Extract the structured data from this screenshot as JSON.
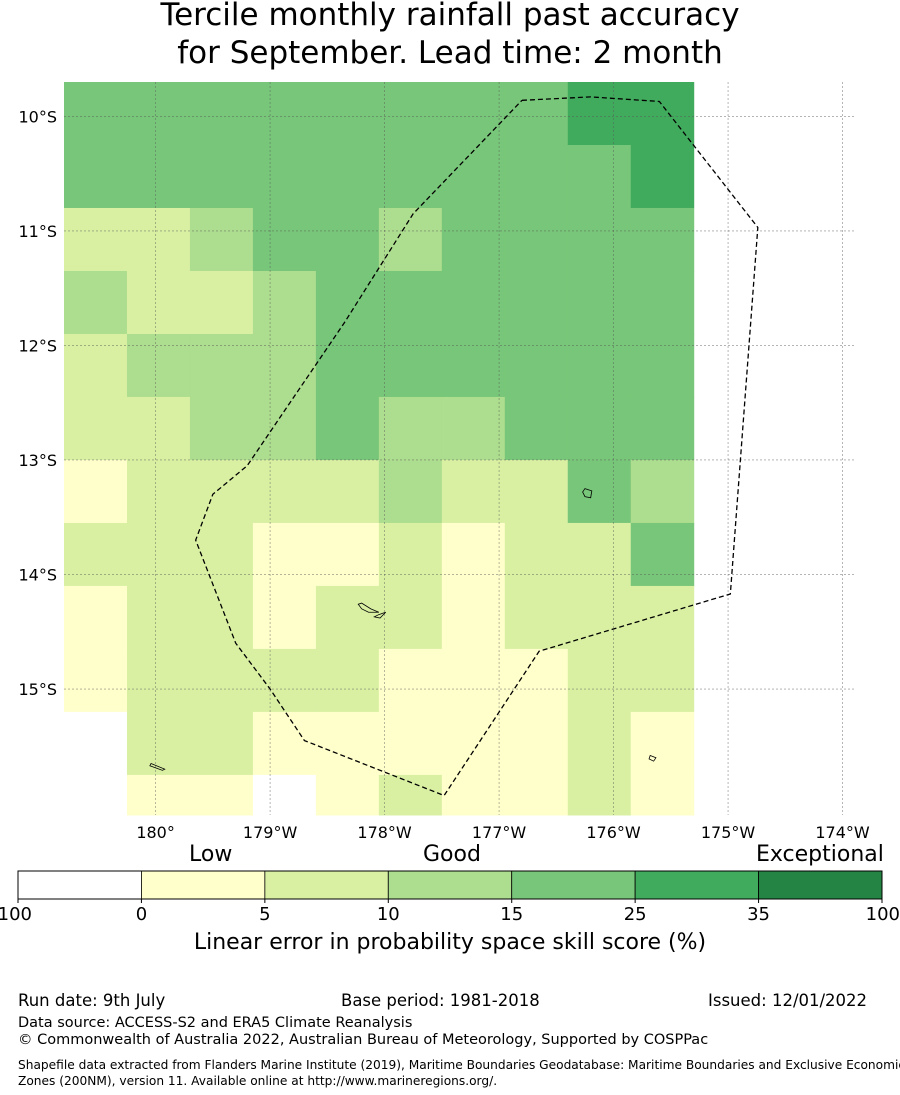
{
  "title": {
    "line1": "Tercile monthly rainfall past accuracy",
    "line2": "for September. Lead time: 2 month"
  },
  "map": {
    "lon_labels": [
      "180°",
      "179°W",
      "178°W",
      "177°W",
      "176°W",
      "175°W",
      "174°W"
    ],
    "lat_labels": [
      "10°S",
      "11°S",
      "12°S",
      "13°S",
      "14°S",
      "15°S"
    ],
    "lon_values": [
      180,
      -179,
      -178,
      -177,
      -176,
      -175,
      -174
    ],
    "lat_values": [
      -10,
      -11,
      -12,
      -13,
      -14,
      -15
    ],
    "extent": {
      "lon_min": 179.2,
      "lon_max": -173.9,
      "lat_max": -9.7,
      "lat_min": -16.1
    },
    "grid_lines": true,
    "cell_deg": 0.55,
    "category_colors": [
      "#ffffff",
      "#ffffcc",
      "#d9f0a3",
      "#addd8e",
      "#78c679",
      "#41ab5d",
      "#238443"
    ],
    "skill_grid": [
      [
        4,
        4,
        4,
        4,
        4,
        4,
        4,
        4,
        5,
        5
      ],
      [
        4,
        4,
        4,
        4,
        4,
        4,
        4,
        4,
        4,
        5
      ],
      [
        2,
        2,
        3,
        4,
        4,
        3,
        4,
        4,
        4,
        4
      ],
      [
        3,
        2,
        2,
        3,
        4,
        4,
        4,
        4,
        4,
        4
      ],
      [
        2,
        3,
        3,
        3,
        4,
        4,
        4,
        4,
        4,
        4
      ],
      [
        2,
        2,
        3,
        3,
        4,
        3,
        3,
        4,
        4,
        4
      ],
      [
        1,
        2,
        2,
        2,
        2,
        3,
        2,
        2,
        4,
        3
      ],
      [
        2,
        2,
        2,
        1,
        1,
        2,
        1,
        2,
        2,
        4
      ],
      [
        1,
        2,
        2,
        1,
        2,
        2,
        1,
        2,
        2,
        2
      ],
      [
        1,
        2,
        2,
        2,
        2,
        1,
        1,
        1,
        2,
        2
      ],
      [
        0,
        2,
        2,
        1,
        1,
        1,
        1,
        1,
        2,
        1
      ],
      [
        0,
        1,
        1,
        0,
        1,
        2,
        1,
        1,
        2,
        1
      ]
    ],
    "eez_boundary_lonlat": [
      [
        -176.8,
        -9.86
      ],
      [
        -176.2,
        -9.83
      ],
      [
        -175.6,
        -9.87
      ],
      [
        -174.74,
        -10.97
      ],
      [
        -174.98,
        -14.17
      ],
      [
        -176.65,
        -14.67
      ],
      [
        -177.48,
        -15.93
      ],
      [
        -178.7,
        -15.45
      ],
      [
        -179.0,
        -15.0
      ],
      [
        -179.3,
        -14.6
      ],
      [
        -179.65,
        -13.7
      ],
      [
        -179.5,
        -13.3
      ],
      [
        -179.2,
        -13.05
      ],
      [
        -178.35,
        -11.8
      ],
      [
        -177.75,
        -10.85
      ],
      [
        -176.8,
        -9.86
      ]
    ],
    "islands_lonlat": [
      [
        [
          -176.25,
          -13.25
        ],
        [
          -176.19,
          -13.27
        ],
        [
          -176.2,
          -13.33
        ],
        [
          -176.25,
          -13.32
        ],
        [
          -176.27,
          -13.28
        ]
      ],
      [
        [
          -178.2,
          -14.25
        ],
        [
          -178.12,
          -14.3
        ],
        [
          -178.05,
          -14.33
        ],
        [
          -178.14,
          -14.33
        ],
        [
          -178.2,
          -14.3
        ],
        [
          -178.23,
          -14.26
        ]
      ],
      [
        [
          -178.05,
          -14.35
        ],
        [
          -177.99,
          -14.33
        ],
        [
          -178.04,
          -14.38
        ],
        [
          -178.09,
          -14.37
        ]
      ],
      [
        [
          -175.68,
          -15.58
        ],
        [
          -175.63,
          -15.6
        ],
        [
          -175.65,
          -15.63
        ],
        [
          -175.69,
          -15.61
        ]
      ],
      [
        [
          179.96,
          -15.65
        ],
        [
          180.08,
          -15.7
        ],
        [
          180.06,
          -15.71
        ],
        [
          179.95,
          -15.67
        ]
      ]
    ]
  },
  "colorbar": {
    "labels": {
      "low": "Low",
      "good": "Good",
      "exceptional": "Exceptional"
    },
    "ticks": [
      "-100",
      "0",
      "5",
      "10",
      "15",
      "25",
      "35",
      "100"
    ],
    "title": "Linear error in probability space skill score (%)"
  },
  "footer": {
    "run_date": "Run date: 9th July",
    "base_period": "Base period: 1981-2018",
    "issued": "Issued: 12/01/2022",
    "data_source": "Data source: ACCESS-S2 and ERA5 Climate Reanalysis",
    "copyright": "© Commonwealth of Australia 2022, Australian Bureau of Meteorology, Supported by COSPPac",
    "shapefile_line1": "Shapefile data extracted from Flanders Marine Institute (2019), Maritime Boundaries Geodatabase: Maritime Boundaries and Exclusive Economic",
    "shapefile_line2": "Zones (200NM), version 11. Available online at http://www.marineregions.org/."
  }
}
